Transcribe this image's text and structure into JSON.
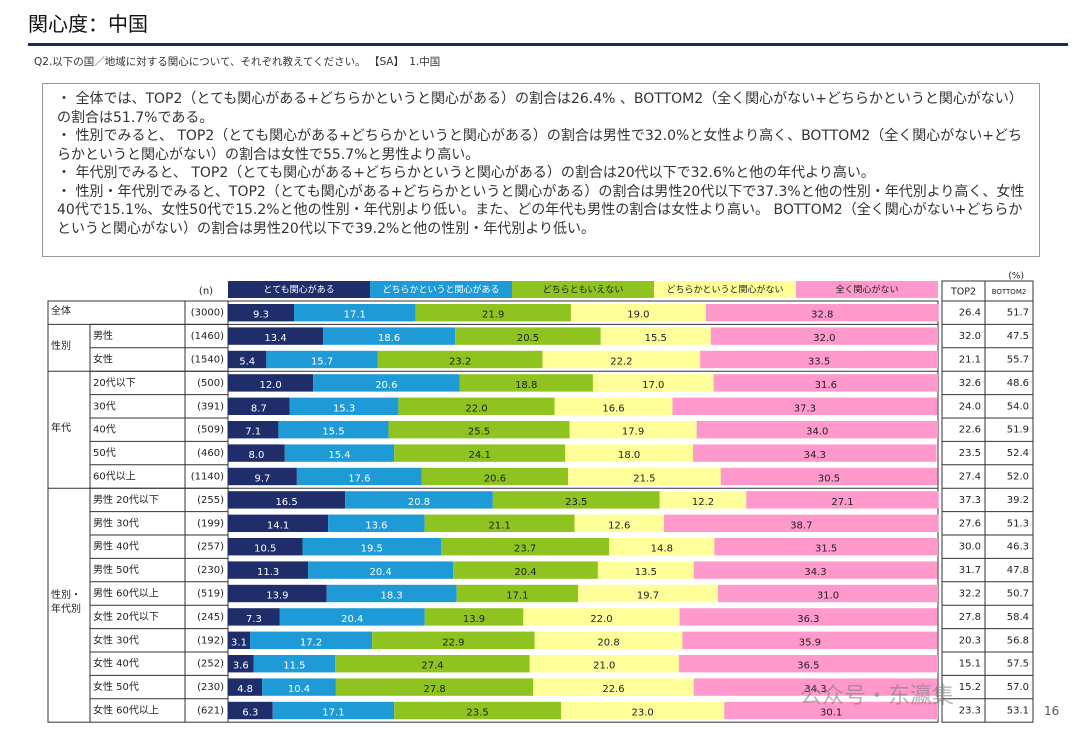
{
  "header": {
    "title": "関心度：中国",
    "question": "Q2.以下の国／地域に対する関心について、それぞれ教えてください。 【SA】　1.中国"
  },
  "summary": [
    "全体では、TOP2（とても関心がある+どちらかというと関心がある）の割合は26.4% 、BOTTOM2（全く関心がない+どちらかというと関心がない）の割合は51.7%である。",
    "性別でみると、 TOP2（とても関心がある+どちらかというと関心がある）の割合は男性で32.0%と女性より高く、BOTTOM2（全く関心がない+どちらかというと関心がない）の割合は女性で55.7%と男性より高い。",
    "年代別でみると、 TOP2（とても関心がある+どちらかというと関心がある）の割合は20代以下で32.6%と他の年代より高い。",
    "性別・年代別でみると、TOP2（とても関心がある+どちらかというと関心がある）の割合は男性20代以下で37.3%と他の性別・年代別より高く、女性40代で15.1%、女性50代で15.2%と他の性別・年代別より低い。また、どの年代も男性の割合は女性より高い。 BOTTOM2（全く関心がない+どちらかというと関心がない）の割合は男性20代以下で39.2%と他の性別・年代別より低い。"
  ],
  "chart_data": {
    "type": "bar",
    "orientation": "horizontal",
    "stacked": true,
    "xlim": [
      0,
      100
    ],
    "unit": "(%)",
    "n_header": "(n)",
    "groups": [
      {
        "name": "全体",
        "size": 1
      },
      {
        "name": "性別",
        "size": 2
      },
      {
        "name": "年代",
        "size": 5
      },
      {
        "name": "性別・年代別",
        "size": 10
      }
    ],
    "categories": [
      null,
      "男性",
      "女性",
      "20代以下",
      "30代",
      "40代",
      "50代",
      "60代以上",
      "男性 20代以下",
      "男性 30代",
      "男性 40代",
      "男性 50代",
      "男性 60代以上",
      "女性 20代以下",
      "女性 30代",
      "女性 40代",
      "女性 50代",
      "女性 60代以上"
    ],
    "n": {
      "values": [
        3000,
        1460,
        1540,
        500,
        391,
        509,
        460,
        1140,
        255,
        199,
        257,
        230,
        519,
        245,
        192,
        252,
        230,
        621
      ],
      "value_labels": [
        "(3000)",
        "(1460)",
        "(1540)",
        "(500)",
        "(391)",
        "(509)",
        "(460)",
        "(1140)",
        "(255)",
        "(199)",
        "(257)",
        "(230)",
        "(519)",
        "(245)",
        "(192)",
        "(252)",
        "(230)",
        "(621)"
      ]
    },
    "series": [
      {
        "name": "とても関心がある",
        "color": "#1f2d6b",
        "values": [
          9.3,
          13.4,
          5.4,
          12.0,
          8.7,
          7.1,
          8.0,
          9.7,
          16.5,
          14.1,
          10.5,
          11.3,
          13.9,
          7.3,
          3.1,
          3.6,
          4.8,
          6.3
        ],
        "value_labels": [
          "9.3",
          "13.4",
          "5.4",
          "12.0",
          "8.7",
          "7.1",
          "8.0",
          "9.7",
          "16.5",
          "14.1",
          "10.5",
          "11.3",
          "13.9",
          "7.3",
          "3.1",
          "3.6",
          "4.8",
          "6.3"
        ]
      },
      {
        "name": "どちらかというと関心がある",
        "color": "#1e9ad6",
        "values": [
          17.1,
          18.6,
          15.7,
          20.6,
          15.3,
          15.5,
          15.4,
          17.6,
          20.8,
          13.6,
          19.5,
          20.4,
          18.3,
          20.4,
          17.2,
          11.5,
          10.4,
          17.1
        ],
        "value_labels": [
          "17.1",
          "18.6",
          "15.7",
          "20.6",
          "15.3",
          "15.5",
          "15.4",
          "17.6",
          "20.8",
          "13.6",
          "19.5",
          "20.4",
          "18.3",
          "20.4",
          "17.2",
          "11.5",
          "10.4",
          "17.1"
        ]
      },
      {
        "name": "どちらともいえない",
        "color": "#8fc31f",
        "values": [
          21.9,
          20.5,
          23.2,
          18.8,
          22.0,
          25.5,
          24.1,
          20.6,
          23.5,
          21.1,
          23.7,
          20.4,
          17.1,
          13.9,
          22.9,
          27.4,
          27.8,
          23.5
        ],
        "value_labels": [
          "21.9",
          "20.5",
          "23.2",
          "18.8",
          "22.0",
          "25.5",
          "24.1",
          "20.6",
          "23.5",
          "21.1",
          "23.7",
          "20.4",
          "17.1",
          "13.9",
          "22.9",
          "27.4",
          "27.8",
          "23.5"
        ]
      },
      {
        "name": "どちらかというと関心がない",
        "color": "#ffff99",
        "values": [
          19.0,
          15.5,
          22.2,
          17.0,
          16.6,
          17.9,
          18.0,
          21.5,
          12.2,
          12.6,
          14.8,
          13.5,
          19.7,
          22.0,
          20.8,
          21.0,
          22.6,
          23.0
        ],
        "value_labels": [
          "19.0",
          "15.5",
          "22.2",
          "17.0",
          "16.6",
          "17.9",
          "18.0",
          "21.5",
          "12.2",
          "12.6",
          "14.8",
          "13.5",
          "19.7",
          "22.0",
          "20.8",
          "21.0",
          "22.6",
          "23.0"
        ]
      },
      {
        "name": "全く関心がない",
        "color": "#ff99cc",
        "values": [
          32.8,
          32.0,
          33.5,
          31.6,
          37.3,
          34.0,
          34.3,
          30.5,
          27.1,
          38.7,
          31.5,
          34.3,
          31.0,
          36.3,
          35.9,
          36.5,
          34.3,
          30.1
        ],
        "value_labels": [
          "32.8",
          "32.0",
          "33.5",
          "31.6",
          "37.3",
          "34.0",
          "34.3",
          "30.5",
          "27.1",
          "38.7",
          "31.5",
          "34.3",
          "31.0",
          "36.3",
          "35.9",
          "36.5",
          "34.3",
          "30.1"
        ]
      }
    ],
    "top2": {
      "name": "TOP2",
      "values": [
        26.4,
        32.0,
        21.1,
        32.6,
        24.0,
        22.6,
        23.5,
        27.4,
        37.3,
        27.6,
        30.0,
        31.7,
        32.2,
        27.8,
        20.3,
        15.1,
        15.2,
        23.3
      ],
      "value_labels": [
        "26.4",
        "32.0",
        "21.1",
        "32.6",
        "24.0",
        "22.6",
        "23.5",
        "27.4",
        "37.3",
        "27.6",
        "30.0",
        "31.7",
        "32.2",
        "27.8",
        "20.3",
        "15.1",
        "15.2",
        "23.3"
      ]
    },
    "bottom2": {
      "name": "BOTTOM2",
      "values": [
        51.7,
        47.5,
        55.7,
        48.6,
        54.0,
        51.9,
        52.4,
        52.0,
        39.2,
        51.3,
        46.3,
        47.8,
        50.7,
        58.4,
        56.8,
        57.5,
        57.0,
        53.1
      ],
      "value_labels": [
        "51.7",
        "47.5",
        "55.7",
        "48.6",
        "54.0",
        "51.9",
        "52.4",
        "52.0",
        "39.2",
        "51.3",
        "46.3",
        "47.8",
        "50.7",
        "58.4",
        "56.8",
        "57.5",
        "57.0",
        "53.1"
      ]
    }
  },
  "page_number": "16",
  "watermark": "公众号・东瀛集"
}
